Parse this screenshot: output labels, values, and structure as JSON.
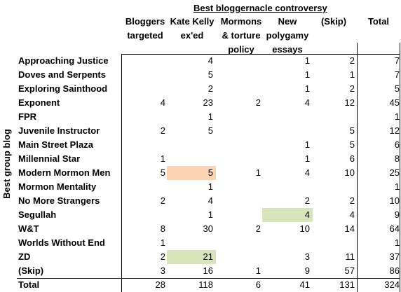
{
  "title": "Best bloggernacle controversy",
  "side_label": "Best group blog",
  "columns": [
    [
      "",
      "Bloggers",
      "targeted"
    ],
    [
      "",
      "Kate Kelly",
      "ex'ed"
    ],
    [
      "Mormons",
      "& torture",
      "policy"
    ],
    [
      "New",
      "polygamy",
      "essays"
    ],
    [
      "",
      "",
      "(Skip)"
    ],
    [
      "",
      "",
      "Total"
    ]
  ],
  "rows": [
    {
      "label": "Approaching Justice",
      "values": [
        "",
        "4",
        "",
        "1",
        "2",
        "7"
      ]
    },
    {
      "label": "Doves and Serpents",
      "values": [
        "",
        "5",
        "",
        "1",
        "1",
        "7"
      ]
    },
    {
      "label": "Exploring Sainthood",
      "values": [
        "",
        "2",
        "",
        "1",
        "2",
        "5"
      ]
    },
    {
      "label": "Exponent",
      "values": [
        "4",
        "23",
        "2",
        "4",
        "12",
        "45"
      ]
    },
    {
      "label": "FPR",
      "values": [
        "",
        "1",
        "",
        "",
        "",
        "1"
      ]
    },
    {
      "label": "Juvenile Instructor",
      "values": [
        "2",
        "5",
        "",
        "",
        "5",
        "12"
      ]
    },
    {
      "label": "Main Street Plaza",
      "values": [
        "",
        "",
        "",
        "1",
        "5",
        "6"
      ]
    },
    {
      "label": "Millennial Star",
      "values": [
        "1",
        "",
        "",
        "1",
        "6",
        "8"
      ]
    },
    {
      "label": "Modern Mormon Men",
      "values": [
        "5",
        "5",
        "1",
        "4",
        "10",
        "25"
      ]
    },
    {
      "label": "Mormon Mentality",
      "values": [
        "",
        "1",
        "",
        "",
        "",
        "1"
      ]
    },
    {
      "label": "No More Strangers",
      "values": [
        "2",
        "4",
        "",
        "2",
        "2",
        "10"
      ]
    },
    {
      "label": "Segullah",
      "values": [
        "",
        "1",
        "",
        "4",
        "4",
        "9"
      ]
    },
    {
      "label": "W&T",
      "values": [
        "8",
        "30",
        "2",
        "10",
        "14",
        "64"
      ]
    },
    {
      "label": "Worlds Without End",
      "values": [
        "1",
        "",
        "",
        "",
        "",
        "1"
      ]
    },
    {
      "label": "ZD",
      "values": [
        "2",
        "21",
        "",
        "3",
        "11",
        "37"
      ]
    },
    {
      "label": "(Skip)",
      "values": [
        "3",
        "16",
        "1",
        "9",
        "57",
        "86"
      ]
    }
  ],
  "total": {
    "label": "Total",
    "values": [
      "28",
      "118",
      "6",
      "41",
      "131",
      "324"
    ]
  },
  "highlight_colors": {
    "orange": "#fbd4b4",
    "green": "#d7e4bc"
  }
}
